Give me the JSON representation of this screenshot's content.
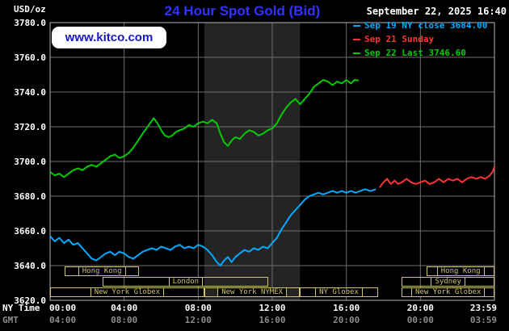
{
  "page": {
    "title": "24 Hour Spot Gold (Bid)",
    "unit_label": "USD/oz",
    "watermark": "www.kitco.com",
    "datetime": "September 22, 2025 16:40",
    "ny_time_label": "NY Time",
    "gmt_label": "GMT",
    "colors": {
      "background": "#000000",
      "title": "#3232ff",
      "watermark_text": "#1818c0",
      "watermark_bg": "#ffffff",
      "grid": "#6f6f6f",
      "plot_border": "#b4b4b4",
      "axis_text": "#ffffff",
      "gmt_text": "#8c8c8c",
      "session_box": "#cfc26e",
      "nymex_band": "#242424"
    }
  },
  "legend": {
    "items": [
      {
        "label": "Sep 19 NY close 3684.00",
        "color": "#00aaff"
      },
      {
        "label": "Sep 21 Sunday",
        "color": "#ff3333"
      },
      {
        "label": "Sep 22 Last 3746.60",
        "color": "#00cc00"
      }
    ]
  },
  "chart_data": {
    "type": "line",
    "title": "24 Hour Spot Gold (Bid)",
    "ylabel": "USD/oz",
    "ylim": [
      3620,
      3780
    ],
    "y_ticks": [
      3780,
      3760,
      3740,
      3720,
      3700,
      3680,
      3660,
      3640,
      3620
    ],
    "grid": true,
    "legend_position": "top-right",
    "x_axis": {
      "tick_hours": [
        0,
        4,
        8,
        12,
        16,
        20,
        24
      ],
      "ny_time_ticks": [
        "00:00",
        "04:00",
        "08:00",
        "12:00",
        "16:00",
        "20:00",
        "23:59"
      ],
      "gmt_ticks": [
        "04:00",
        "08:00",
        "12:00",
        "16:00",
        "20:00",
        "00:00",
        "03:59"
      ]
    },
    "highlight_band": {
      "start_hour": 8.33,
      "end_hour": 13.5
    },
    "series": [
      {
        "key": "sep19-ny-close",
        "name": "Sep 19 NY close",
        "close": 3684.0,
        "color": "#00aaff",
        "points": [
          [
            0,
            3657
          ],
          [
            0.25,
            3654
          ],
          [
            0.5,
            3656
          ],
          [
            0.75,
            3653
          ],
          [
            1,
            3655
          ],
          [
            1.25,
            3652
          ],
          [
            1.5,
            3653
          ],
          [
            1.75,
            3650
          ],
          [
            2,
            3647
          ],
          [
            2.25,
            3644
          ],
          [
            2.5,
            3643
          ],
          [
            2.75,
            3645
          ],
          [
            3,
            3647
          ],
          [
            3.25,
            3648
          ],
          [
            3.5,
            3646
          ],
          [
            3.75,
            3648
          ],
          [
            4,
            3647
          ],
          [
            4.25,
            3645
          ],
          [
            4.5,
            3644
          ],
          [
            4.75,
            3646
          ],
          [
            5,
            3648
          ],
          [
            5.25,
            3649
          ],
          [
            5.5,
            3650
          ],
          [
            5.75,
            3649
          ],
          [
            6,
            3651
          ],
          [
            6.25,
            3650
          ],
          [
            6.5,
            3649
          ],
          [
            6.75,
            3651
          ],
          [
            7,
            3652
          ],
          [
            7.25,
            3650
          ],
          [
            7.5,
            3651
          ],
          [
            7.75,
            3650
          ],
          [
            8,
            3652
          ],
          [
            8.25,
            3651
          ],
          [
            8.5,
            3649
          ],
          [
            8.75,
            3646
          ],
          [
            9,
            3642
          ],
          [
            9.2,
            3640
          ],
          [
            9.4,
            3643
          ],
          [
            9.6,
            3645
          ],
          [
            9.8,
            3642
          ],
          [
            10,
            3645
          ],
          [
            10.25,
            3647
          ],
          [
            10.5,
            3649
          ],
          [
            10.75,
            3648
          ],
          [
            11,
            3650
          ],
          [
            11.25,
            3649
          ],
          [
            11.5,
            3651
          ],
          [
            11.75,
            3650
          ],
          [
            12,
            3653
          ],
          [
            12.25,
            3656
          ],
          [
            12.5,
            3661
          ],
          [
            12.75,
            3665
          ],
          [
            13,
            3669
          ],
          [
            13.25,
            3672
          ],
          [
            13.5,
            3675
          ],
          [
            13.75,
            3678
          ],
          [
            14,
            3680
          ],
          [
            14.25,
            3681
          ],
          [
            14.5,
            3682
          ],
          [
            14.75,
            3681
          ],
          [
            15,
            3682
          ],
          [
            15.25,
            3683
          ],
          [
            15.5,
            3682
          ],
          [
            15.75,
            3683
          ],
          [
            16,
            3682
          ],
          [
            16.25,
            3683
          ],
          [
            16.5,
            3682
          ],
          [
            16.75,
            3683
          ],
          [
            17,
            3684
          ],
          [
            17.3,
            3683
          ],
          [
            17.6,
            3684
          ]
        ]
      },
      {
        "key": "sep21-sunday",
        "name": "Sep 21 Sunday",
        "color": "#ff3333",
        "points": [
          [
            17.8,
            3685
          ],
          [
            18,
            3688
          ],
          [
            18.2,
            3690
          ],
          [
            18.4,
            3687
          ],
          [
            18.6,
            3689
          ],
          [
            18.8,
            3687
          ],
          [
            19,
            3688
          ],
          [
            19.25,
            3690
          ],
          [
            19.5,
            3688
          ],
          [
            19.75,
            3687
          ],
          [
            20,
            3688
          ],
          [
            20.25,
            3689
          ],
          [
            20.5,
            3687
          ],
          [
            20.75,
            3688
          ],
          [
            21,
            3690
          ],
          [
            21.25,
            3688
          ],
          [
            21.5,
            3690
          ],
          [
            21.75,
            3689
          ],
          [
            22,
            3690
          ],
          [
            22.25,
            3688
          ],
          [
            22.5,
            3690
          ],
          [
            22.75,
            3691
          ],
          [
            23,
            3690
          ],
          [
            23.25,
            3691
          ],
          [
            23.5,
            3690
          ],
          [
            23.75,
            3692
          ],
          [
            23.9,
            3694
          ],
          [
            24,
            3697
          ]
        ]
      },
      {
        "key": "sep22-last",
        "name": "Sep 22 Last",
        "last": 3746.6,
        "color": "#00cc00",
        "points": [
          [
            0,
            3694
          ],
          [
            0.25,
            3692
          ],
          [
            0.5,
            3693
          ],
          [
            0.75,
            3691
          ],
          [
            1,
            3693
          ],
          [
            1.25,
            3695
          ],
          [
            1.5,
            3696
          ],
          [
            1.75,
            3695
          ],
          [
            2,
            3697
          ],
          [
            2.25,
            3698
          ],
          [
            2.5,
            3697
          ],
          [
            2.75,
            3699
          ],
          [
            3,
            3701
          ],
          [
            3.25,
            3703
          ],
          [
            3.5,
            3704
          ],
          [
            3.75,
            3702
          ],
          [
            4,
            3703
          ],
          [
            4.25,
            3705
          ],
          [
            4.5,
            3708
          ],
          [
            4.75,
            3712
          ],
          [
            5,
            3716
          ],
          [
            5.2,
            3719
          ],
          [
            5.4,
            3722
          ],
          [
            5.6,
            3725
          ],
          [
            5.8,
            3722
          ],
          [
            6,
            3718
          ],
          [
            6.2,
            3715
          ],
          [
            6.4,
            3714
          ],
          [
            6.6,
            3715
          ],
          [
            6.8,
            3717
          ],
          [
            7,
            3718
          ],
          [
            7.25,
            3719
          ],
          [
            7.5,
            3721
          ],
          [
            7.75,
            3720
          ],
          [
            8,
            3722
          ],
          [
            8.25,
            3723
          ],
          [
            8.5,
            3722
          ],
          [
            8.75,
            3724
          ],
          [
            9,
            3722
          ],
          [
            9.2,
            3716
          ],
          [
            9.4,
            3711
          ],
          [
            9.6,
            3709
          ],
          [
            9.8,
            3712
          ],
          [
            10,
            3714
          ],
          [
            10.25,
            3713
          ],
          [
            10.5,
            3716
          ],
          [
            10.75,
            3718
          ],
          [
            11,
            3717
          ],
          [
            11.25,
            3715
          ],
          [
            11.5,
            3716
          ],
          [
            11.75,
            3718
          ],
          [
            12,
            3719
          ],
          [
            12.25,
            3722
          ],
          [
            12.5,
            3727
          ],
          [
            12.75,
            3731
          ],
          [
            13,
            3734
          ],
          [
            13.25,
            3736
          ],
          [
            13.5,
            3733
          ],
          [
            13.75,
            3736
          ],
          [
            14,
            3739
          ],
          [
            14.25,
            3743
          ],
          [
            14.5,
            3745
          ],
          [
            14.75,
            3747
          ],
          [
            15,
            3746
          ],
          [
            15.25,
            3744
          ],
          [
            15.5,
            3746
          ],
          [
            15.75,
            3745
          ],
          [
            16,
            3747
          ],
          [
            16.25,
            3745
          ],
          [
            16.45,
            3747
          ],
          [
            16.67,
            3746.6
          ]
        ]
      }
    ],
    "sessions": [
      {
        "row": 0,
        "label": "Hong Kong",
        "start": 0.8,
        "end": 4.8
      },
      {
        "row": 0,
        "label": "Hong Kong",
        "start": 20.35,
        "end": 24
      },
      {
        "row": 1,
        "label": "London",
        "start": 2.85,
        "end": 11.8
      },
      {
        "row": 1,
        "label": "Sydney",
        "start": 19,
        "end": 24
      },
      {
        "row": 2,
        "label": "New York Globex",
        "start": 0,
        "end": 8.33
      },
      {
        "row": 2,
        "label": "New York NYMEX",
        "start": 8.33,
        "end": 13.5
      },
      {
        "row": 2,
        "label": "NY Globex",
        "start": 13.5,
        "end": 17.7
      },
      {
        "row": 2,
        "label": "New York Globex",
        "start": 19,
        "end": 24
      }
    ]
  }
}
